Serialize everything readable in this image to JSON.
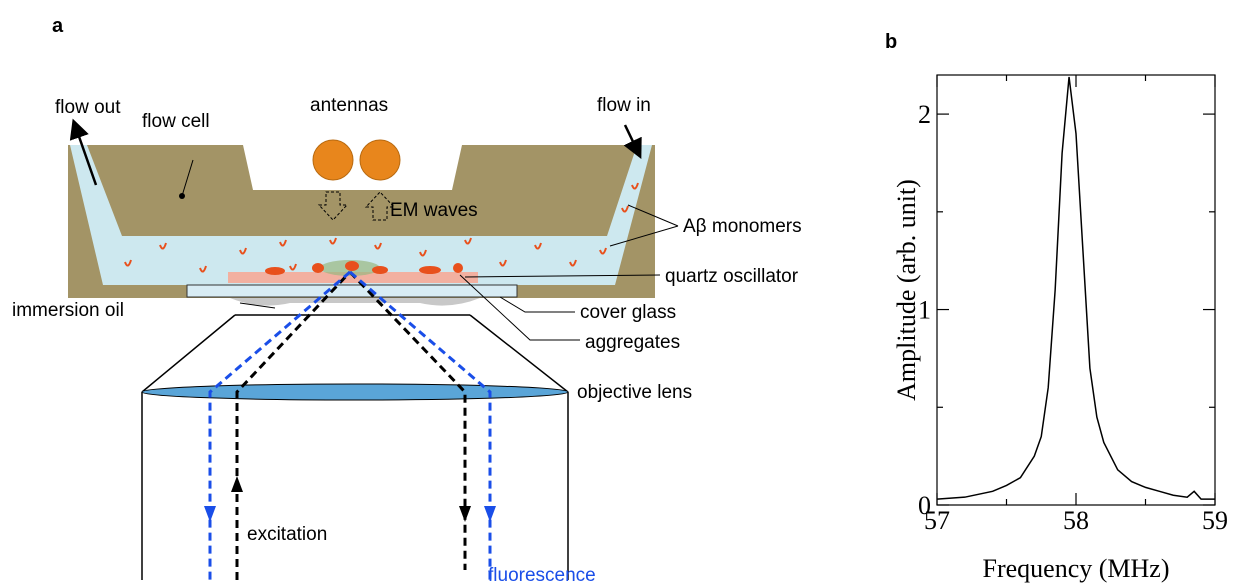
{
  "diagram": {
    "panel_label": "a",
    "labels": {
      "flow_out": "flow out",
      "flow_cell": "flow cell",
      "antennas": "antennas",
      "flow_in": "flow in",
      "em_waves": "EM waves",
      "monomers": "Aβ monomers",
      "quartz": "quartz oscillator",
      "oil": "immersion oil",
      "cover_glass": "cover glass",
      "aggregates": "aggregates",
      "objective": "objective lens",
      "excitation": "excitation",
      "fluorescence": "fluorescence"
    }
  },
  "chart_data": {
    "type": "line",
    "panel_label": "b",
    "x_label": "Frequency (MHz)",
    "y_label": "Amplitude (arb. unit)",
    "x": [
      57.0,
      57.2,
      57.4,
      57.5,
      57.6,
      57.7,
      57.75,
      57.8,
      57.85,
      57.9,
      57.95,
      58.0,
      58.05,
      58.1,
      58.15,
      58.2,
      58.3,
      58.4,
      58.5,
      58.6,
      58.7,
      58.8,
      58.85,
      58.9,
      59.0
    ],
    "values": [
      0.03,
      0.04,
      0.07,
      0.1,
      0.14,
      0.25,
      0.35,
      0.6,
      1.1,
      1.8,
      2.19,
      1.9,
      1.3,
      0.7,
      0.45,
      0.32,
      0.18,
      0.12,
      0.09,
      0.07,
      0.05,
      0.04,
      0.07,
      0.03,
      0.03
    ],
    "color": "#000000",
    "xlim": [
      57,
      59
    ],
    "ylim": [
      0,
      2.2
    ],
    "xticks": [
      57,
      58,
      59
    ],
    "yticks": [
      0,
      1,
      2
    ],
    "xticks_minor": [
      57.5,
      58.5
    ],
    "yticks_minor": [
      0.5,
      1.5
    ]
  }
}
